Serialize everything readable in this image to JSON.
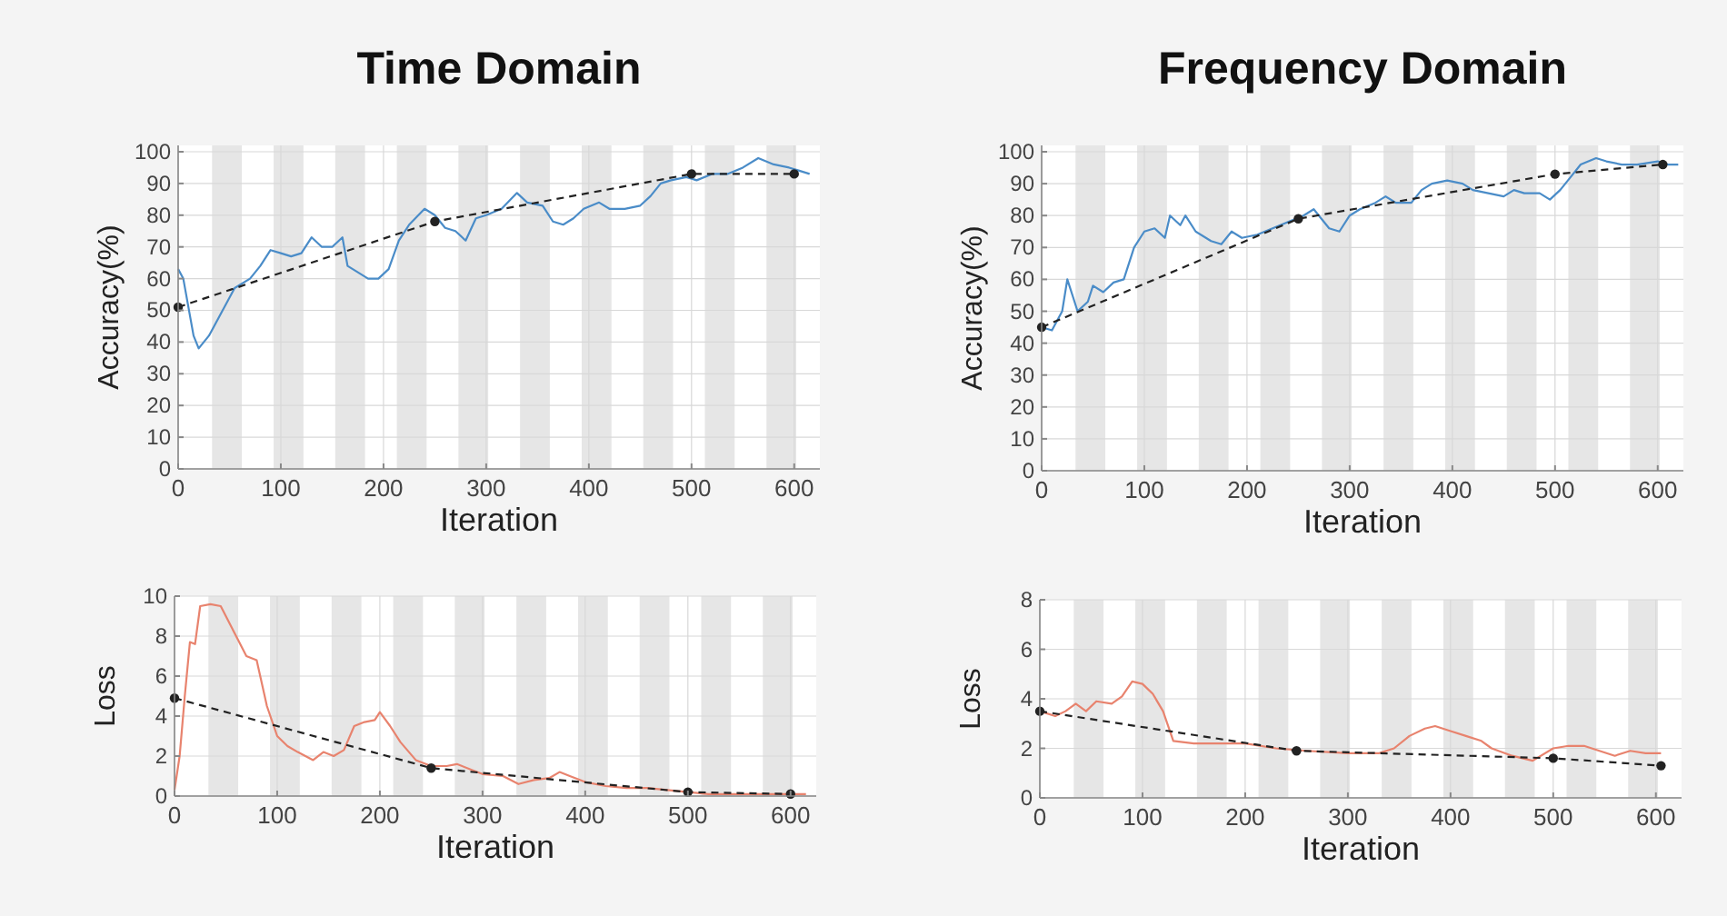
{
  "chart_data": [
    {
      "type": "line",
      "title": "Time Domain",
      "xlabel": "Iteration",
      "ylabel": "Accuracy(%)",
      "xlim": [
        0,
        625
      ],
      "xticks": [
        0,
        100,
        200,
        300,
        400,
        500,
        600
      ],
      "ylim": [
        0,
        102
      ],
      "yticks": [
        0,
        10,
        20,
        30,
        40,
        50,
        60,
        70,
        80,
        90,
        100
      ],
      "grid": true,
      "bands": [
        {
          "axis": "x",
          "from": 33,
          "to": 62,
          "color": "#e6e6e6"
        },
        {
          "axis": "x",
          "from": 93,
          "to": 122,
          "color": "#e6e6e6"
        },
        {
          "axis": "x",
          "from": 153,
          "to": 182,
          "color": "#e6e6e6"
        },
        {
          "axis": "x",
          "from": 213,
          "to": 242,
          "color": "#e6e6e6"
        },
        {
          "axis": "x",
          "from": 273,
          "to": 302,
          "color": "#e6e6e6"
        },
        {
          "axis": "x",
          "from": 333,
          "to": 362,
          "color": "#e6e6e6"
        },
        {
          "axis": "x",
          "from": 393,
          "to": 422,
          "color": "#e6e6e6"
        },
        {
          "axis": "x",
          "from": 453,
          "to": 482,
          "color": "#e6e6e6"
        },
        {
          "axis": "x",
          "from": 513,
          "to": 542,
          "color": "#e6e6e6"
        },
        {
          "axis": "x",
          "from": 573,
          "to": 602,
          "color": "#e6e6e6"
        }
      ],
      "series": [
        {
          "color": "#4a8cc8",
          "line_style": "solid",
          "marker": "none",
          "x": [
            0,
            5,
            15,
            20,
            30,
            40,
            55,
            70,
            80,
            90,
            100,
            110,
            120,
            130,
            140,
            150,
            160,
            165,
            175,
            185,
            195,
            205,
            215,
            225,
            240,
            250,
            260,
            270,
            280,
            290,
            300,
            315,
            330,
            340,
            355,
            365,
            375,
            385,
            395,
            410,
            420,
            435,
            450,
            460,
            470,
            480,
            495,
            505,
            520,
            535,
            550,
            565,
            580,
            595,
            605,
            615
          ],
          "values": [
            63,
            60,
            42,
            38,
            42,
            48,
            57,
            60,
            64,
            69,
            68,
            67,
            68,
            73,
            70,
            70,
            73,
            64,
            62,
            60,
            60,
            63,
            72,
            77,
            82,
            80,
            76,
            75,
            72,
            79,
            80,
            82,
            87,
            84,
            83,
            78,
            77,
            79,
            82,
            84,
            82,
            82,
            83,
            86,
            90,
            91,
            92,
            91,
            93,
            93,
            95,
            98,
            96,
            95,
            94,
            93
          ]
        },
        {
          "color": "#222222",
          "line_style": "dashed",
          "marker": "circle",
          "x": [
            0,
            250,
            500,
            600
          ],
          "values": [
            51,
            78,
            93,
            93
          ]
        }
      ]
    },
    {
      "type": "line",
      "title": "Frequency Domain",
      "xlabel": "Iteration",
      "ylabel": "Accuracy(%)",
      "xlim": [
        0,
        625
      ],
      "xticks": [
        0,
        100,
        200,
        300,
        400,
        500,
        600
      ],
      "ylim": [
        0,
        102
      ],
      "yticks": [
        0,
        10,
        20,
        30,
        40,
        50,
        60,
        70,
        80,
        90,
        100
      ],
      "grid": true,
      "bands": [
        {
          "axis": "x",
          "from": 33,
          "to": 62,
          "color": "#e6e6e6"
        },
        {
          "axis": "x",
          "from": 93,
          "to": 122,
          "color": "#e6e6e6"
        },
        {
          "axis": "x",
          "from": 153,
          "to": 182,
          "color": "#e6e6e6"
        },
        {
          "axis": "x",
          "from": 213,
          "to": 242,
          "color": "#e6e6e6"
        },
        {
          "axis": "x",
          "from": 273,
          "to": 302,
          "color": "#e6e6e6"
        },
        {
          "axis": "x",
          "from": 333,
          "to": 362,
          "color": "#e6e6e6"
        },
        {
          "axis": "x",
          "from": 393,
          "to": 422,
          "color": "#e6e6e6"
        },
        {
          "axis": "x",
          "from": 453,
          "to": 482,
          "color": "#e6e6e6"
        },
        {
          "axis": "x",
          "from": 513,
          "to": 542,
          "color": "#e6e6e6"
        },
        {
          "axis": "x",
          "from": 573,
          "to": 602,
          "color": "#e6e6e6"
        }
      ],
      "series": [
        {
          "color": "#4a8cc8",
          "line_style": "solid",
          "marker": "none",
          "x": [
            0,
            10,
            20,
            25,
            35,
            45,
            50,
            60,
            70,
            80,
            90,
            100,
            110,
            120,
            125,
            135,
            140,
            150,
            165,
            175,
            185,
            195,
            210,
            225,
            240,
            255,
            265,
            280,
            290,
            300,
            310,
            325,
            335,
            345,
            360,
            370,
            380,
            395,
            410,
            420,
            435,
            450,
            460,
            470,
            485,
            495,
            505,
            515,
            525,
            540,
            550,
            565,
            580,
            600,
            610,
            620
          ],
          "values": [
            45,
            44,
            50,
            60,
            50,
            53,
            58,
            56,
            59,
            60,
            70,
            75,
            76,
            73,
            80,
            77,
            80,
            75,
            72,
            71,
            75,
            73,
            74,
            76,
            78,
            80,
            82,
            76,
            75,
            80,
            82,
            84,
            86,
            84,
            84,
            88,
            90,
            91,
            90,
            88,
            87,
            86,
            88,
            87,
            87,
            85,
            88,
            92,
            96,
            98,
            97,
            96,
            96,
            97,
            96,
            96
          ]
        },
        {
          "color": "#222222",
          "line_style": "dashed",
          "marker": "circle",
          "x": [
            0,
            250,
            500,
            605
          ],
          "values": [
            45,
            79,
            93,
            96
          ]
        }
      ]
    },
    {
      "type": "line",
      "xlabel": "Iteration",
      "ylabel": "Loss",
      "xlim": [
        0,
        625
      ],
      "xticks": [
        0,
        100,
        200,
        300,
        400,
        500,
        600
      ],
      "ylim": [
        0,
        10
      ],
      "yticks": [
        0,
        2,
        4,
        6,
        8,
        10
      ],
      "grid": true,
      "bands": [
        {
          "axis": "x",
          "from": 33,
          "to": 62,
          "color": "#e6e6e6"
        },
        {
          "axis": "x",
          "from": 93,
          "to": 122,
          "color": "#e6e6e6"
        },
        {
          "axis": "x",
          "from": 153,
          "to": 182,
          "color": "#e6e6e6"
        },
        {
          "axis": "x",
          "from": 213,
          "to": 242,
          "color": "#e6e6e6"
        },
        {
          "axis": "x",
          "from": 273,
          "to": 302,
          "color": "#e6e6e6"
        },
        {
          "axis": "x",
          "from": 333,
          "to": 362,
          "color": "#e6e6e6"
        },
        {
          "axis": "x",
          "from": 393,
          "to": 422,
          "color": "#e6e6e6"
        },
        {
          "axis": "x",
          "from": 453,
          "to": 482,
          "color": "#e6e6e6"
        },
        {
          "axis": "x",
          "from": 513,
          "to": 542,
          "color": "#e6e6e6"
        },
        {
          "axis": "x",
          "from": 573,
          "to": 602,
          "color": "#e6e6e6"
        }
      ],
      "series": [
        {
          "color": "#e8836e",
          "line_style": "solid",
          "marker": "none",
          "x": [
            0,
            5,
            10,
            15,
            20,
            25,
            35,
            45,
            55,
            65,
            70,
            80,
            90,
            100,
            110,
            120,
            135,
            145,
            155,
            165,
            175,
            185,
            195,
            200,
            210,
            220,
            235,
            250,
            265,
            275,
            290,
            300,
            320,
            335,
            350,
            365,
            375,
            385,
            400,
            420,
            440,
            460,
            480,
            500,
            520,
            560,
            600,
            615
          ],
          "values": [
            0.3,
            2,
            5,
            7.7,
            7.6,
            9.5,
            9.6,
            9.5,
            8.5,
            7.5,
            7,
            6.8,
            4.5,
            3,
            2.5,
            2.2,
            1.8,
            2.2,
            2,
            2.3,
            3.5,
            3.7,
            3.8,
            4.2,
            3.5,
            2.7,
            1.8,
            1.5,
            1.5,
            1.6,
            1.3,
            1.1,
            1,
            0.6,
            0.8,
            0.9,
            1.2,
            1,
            0.7,
            0.5,
            0.4,
            0.4,
            0.3,
            0.2,
            0.1,
            0.1,
            0.1,
            0.1
          ]
        },
        {
          "color": "#222222",
          "line_style": "dashed",
          "marker": "circle",
          "x": [
            0,
            250,
            500,
            600
          ],
          "values": [
            4.9,
            1.4,
            0.2,
            0.1
          ]
        }
      ]
    },
    {
      "type": "line",
      "xlabel": "Iteration",
      "ylabel": "Loss",
      "xlim": [
        0,
        625
      ],
      "xticks": [
        0,
        100,
        200,
        300,
        400,
        500,
        600
      ],
      "ylim": [
        0,
        8
      ],
      "yticks": [
        0,
        2,
        4,
        6,
        8
      ],
      "grid": true,
      "bands": [
        {
          "axis": "x",
          "from": 33,
          "to": 62,
          "color": "#e6e6e6"
        },
        {
          "axis": "x",
          "from": 93,
          "to": 122,
          "color": "#e6e6e6"
        },
        {
          "axis": "x",
          "from": 153,
          "to": 182,
          "color": "#e6e6e6"
        },
        {
          "axis": "x",
          "from": 213,
          "to": 242,
          "color": "#e6e6e6"
        },
        {
          "axis": "x",
          "from": 273,
          "to": 302,
          "color": "#e6e6e6"
        },
        {
          "axis": "x",
          "from": 333,
          "to": 362,
          "color": "#e6e6e6"
        },
        {
          "axis": "x",
          "from": 393,
          "to": 422,
          "color": "#e6e6e6"
        },
        {
          "axis": "x",
          "from": 453,
          "to": 482,
          "color": "#e6e6e6"
        },
        {
          "axis": "x",
          "from": 513,
          "to": 542,
          "color": "#e6e6e6"
        },
        {
          "axis": "x",
          "from": 573,
          "to": 602,
          "color": "#e6e6e6"
        }
      ],
      "series": [
        {
          "color": "#e8836e",
          "line_style": "solid",
          "marker": "none",
          "x": [
            0,
            15,
            25,
            35,
            45,
            55,
            70,
            80,
            90,
            100,
            110,
            120,
            130,
            150,
            175,
            200,
            230,
            260,
            300,
            330,
            345,
            360,
            375,
            385,
            400,
            415,
            430,
            440,
            460,
            480,
            500,
            515,
            530,
            545,
            560,
            575,
            590,
            605
          ],
          "values": [
            3.5,
            3.3,
            3.5,
            3.8,
            3.5,
            3.9,
            3.8,
            4.1,
            4.7,
            4.6,
            4.2,
            3.5,
            2.3,
            2.2,
            2.2,
            2.2,
            2,
            1.9,
            1.8,
            1.8,
            2,
            2.5,
            2.8,
            2.9,
            2.7,
            2.5,
            2.3,
            2,
            1.7,
            1.5,
            2,
            2.1,
            2.1,
            1.9,
            1.7,
            1.9,
            1.8,
            1.8
          ]
        },
        {
          "color": "#222222",
          "line_style": "dashed",
          "marker": "circle",
          "x": [
            0,
            250,
            500,
            605
          ],
          "values": [
            3.5,
            1.9,
            1.6,
            1.3
          ]
        }
      ]
    }
  ]
}
